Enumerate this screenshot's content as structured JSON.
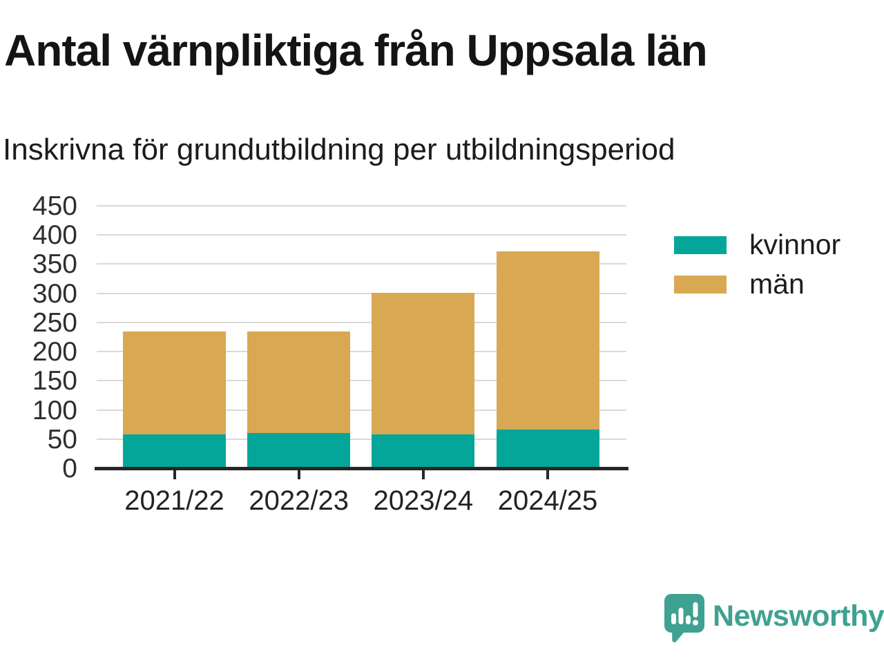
{
  "header": {
    "title": "Antal värnpliktiga från Uppsala län",
    "subtitle": "Inskrivna för grundutbildning per utbildningsperiod"
  },
  "colors": {
    "kvinnor": "#05A69A",
    "man": "#D9A852",
    "grid": "#D9D9D9",
    "axis": "#262626",
    "brand_teal": "#3FA191",
    "text_dark": "#141414"
  },
  "chart_data": {
    "type": "bar",
    "stacked": true,
    "categories": [
      "2021/22",
      "2022/23",
      "2023/24",
      "2024/25"
    ],
    "series": [
      {
        "name": "kvinnor",
        "color": "#05A69A",
        "values": [
          58,
          61,
          58,
          66
        ]
      },
      {
        "name": "män",
        "color": "#D9A852",
        "values": [
          177,
          174,
          243,
          306
        ]
      }
    ],
    "title": "Antal värnpliktiga från Uppsala län",
    "subtitle": "Inskrivna för grundutbildning per utbildningsperiod",
    "xlabel": "",
    "ylabel": "",
    "ylim": [
      0,
      450
    ],
    "ytick_step": 50,
    "grid": true,
    "legend_position": "right"
  },
  "legend": {
    "items": [
      {
        "label": "kvinnor"
      },
      {
        "label": "män"
      }
    ]
  },
  "footer": {
    "brand_name": "Newsworthy"
  }
}
